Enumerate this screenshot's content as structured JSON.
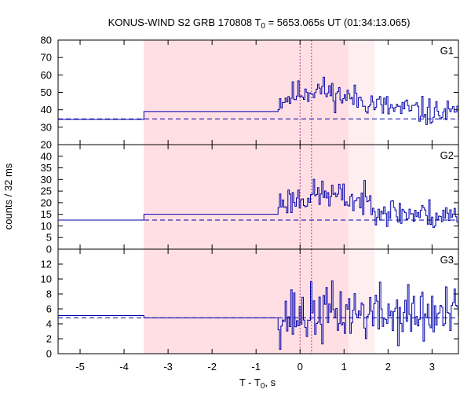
{
  "chart_data": {
    "type": "line",
    "title_prefix": "KONUS-WIND S2 GRB 170808 T",
    "title_sub": "0",
    "title_suffix": " = 5653.065s UT (01:34:13.065)",
    "xlabel_prefix": "T - T",
    "xlabel_sub": "0",
    "xlabel_suffix": ", s",
    "ylabel": "counts / 32 ms",
    "xlim": [
      -5.5,
      3.6
    ],
    "x_ticks": [
      -5,
      -4,
      -3,
      -2,
      -1,
      0,
      1,
      2,
      3
    ],
    "x_tick_labels": [
      "-5",
      "-4",
      "-3",
      "-2",
      "-1",
      "0",
      "1",
      "2",
      "3"
    ],
    "shaded_regions": [
      {
        "x": [
          -3.55,
          1.1
        ],
        "color": "#ffdfe3"
      },
      {
        "x": [
          1.1,
          1.7
        ],
        "color": "#ffeef0"
      }
    ],
    "vertical_markers": [
      0.0,
      0.26
    ],
    "colors": {
      "series": "#0000aa",
      "marker": "#aa4488",
      "frame": "#000000"
    },
    "panels": [
      {
        "name": "G1",
        "ylim": [
          20,
          80
        ],
        "y_ticks": [
          20,
          30,
          40,
          50,
          60,
          70,
          80
        ],
        "y_tick_labels": [
          "20",
          "30",
          "40",
          "50",
          "60",
          "70",
          "80"
        ],
        "background": 34.8,
        "pre_levels": [
          {
            "x": [
              -5.5,
              -3.55
            ],
            "y": 34.5
          },
          {
            "x": [
              -3.55,
              -0.5
            ],
            "y": 39
          }
        ],
        "burst_start": -0.5,
        "seed": 11,
        "profile": [
          {
            "x": -0.5,
            "y": 45
          },
          {
            "x": 0.0,
            "y": 50
          },
          {
            "x": 0.4,
            "y": 52
          },
          {
            "x": 0.9,
            "y": 48
          },
          {
            "x": 1.5,
            "y": 45
          },
          {
            "x": 2.0,
            "y": 41
          },
          {
            "x": 3.6,
            "y": 37
          }
        ],
        "noise": 6
      },
      {
        "name": "G2",
        "ylim": [
          0,
          45
        ],
        "y_ticks": [
          0,
          5,
          10,
          15,
          20,
          25,
          30,
          35,
          40
        ],
        "y_tick_labels": [
          "0",
          "5",
          "10",
          "15",
          "20",
          "25",
          "30",
          "35",
          "40"
        ],
        "background": 12.5,
        "pre_levels": [
          {
            "x": [
              -5.5,
              -3.55
            ],
            "y": 12.5
          },
          {
            "x": [
              -3.55,
              -0.5
            ],
            "y": 15
          }
        ],
        "burst_start": -0.5,
        "seed": 23,
        "profile": [
          {
            "x": -0.5,
            "y": 20
          },
          {
            "x": 0.0,
            "y": 22
          },
          {
            "x": 0.5,
            "y": 24
          },
          {
            "x": 1.0,
            "y": 22
          },
          {
            "x": 1.6,
            "y": 20
          },
          {
            "x": 2.0,
            "y": 16
          },
          {
            "x": 3.6,
            "y": 14
          }
        ],
        "noise": 5
      },
      {
        "name": "G3",
        "ylim": [
          0,
          14
        ],
        "y_ticks": [
          0,
          2,
          4,
          6,
          8,
          10,
          12
        ],
        "y_tick_labels": [
          "0",
          "2",
          "4",
          "6",
          "8",
          "10",
          "12"
        ],
        "background": 4.8,
        "pre_levels": [
          {
            "x": [
              -5.5,
              -3.55
            ],
            "y": 5.1
          },
          {
            "x": [
              -3.55,
              -0.5
            ],
            "y": 4.8
          }
        ],
        "burst_start": -0.5,
        "seed": 37,
        "profile": [
          {
            "x": -0.5,
            "y": 5
          },
          {
            "x": 1.0,
            "y": 5.5
          },
          {
            "x": 3.6,
            "y": 5
          }
        ],
        "noise": 3
      }
    ]
  }
}
